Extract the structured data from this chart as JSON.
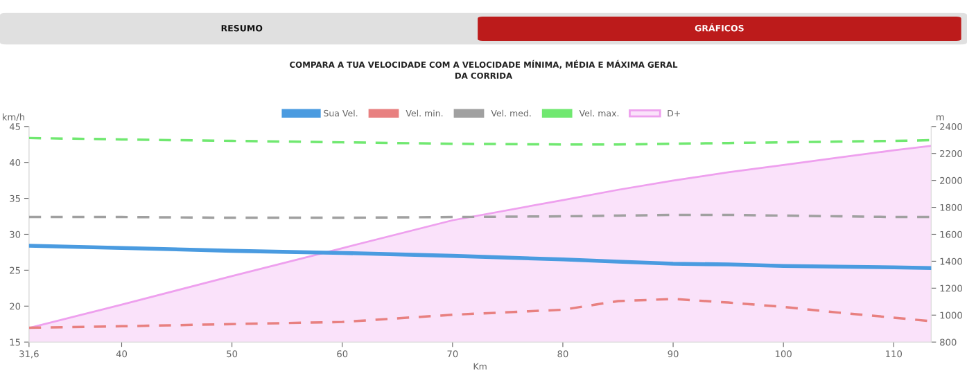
{
  "chart_data": {
    "type": "line",
    "title": "COMPARA A TUA VELOCIDADE COM A VELOCIDADE MÍNIMA, MÉDIA E MÁXIMA GERAL\nDA CORRIDA",
    "annotations": [
      "RESUMO",
      "GRÁFICOS"
    ],
    "xlabel": "Km",
    "ylabel": "km/h",
    "y2label": "m",
    "x": [
      31.6,
      40,
      50,
      60,
      70,
      80,
      85,
      90,
      95,
      100,
      105,
      110,
      113.4
    ],
    "xlim": [
      31.6,
      113.4
    ],
    "xticks": [
      {
        "value": 31.6,
        "label": "31,6"
      },
      40,
      50,
      60,
      70,
      80,
      90,
      100,
      110
    ],
    "ylim": [
      15,
      45
    ],
    "yticks": [
      15,
      20,
      25,
      30,
      35,
      40,
      45
    ],
    "y2lim": [
      800,
      2400
    ],
    "y2ticks": [
      800,
      1000,
      1200,
      1400,
      1600,
      1800,
      2000,
      2200,
      2400
    ],
    "grid": false,
    "legend": "top",
    "marker": "none",
    "series": [
      {
        "name": "Sua Vel.",
        "line_style": "solid",
        "color": "#4a9be0",
        "values": [
          28.4,
          28.1,
          27.7,
          27.4,
          27.0,
          26.5,
          26.2,
          25.9,
          25.8,
          25.6,
          25.5,
          25.4,
          25.3
        ]
      },
      {
        "name": "Vel. min.",
        "line_style": "dashed",
        "color": "#e88080",
        "values": [
          17.0,
          17.2,
          17.5,
          17.8,
          18.8,
          19.5,
          20.7,
          21.0,
          20.5,
          19.9,
          19.1,
          18.4,
          17.9
        ]
      },
      {
        "name": "Vel. med.",
        "line_style": "dashed",
        "color": "#a0a0a0",
        "values": [
          32.4,
          32.4,
          32.3,
          32.3,
          32.4,
          32.5,
          32.6,
          32.7,
          32.7,
          32.6,
          32.5,
          32.4,
          32.4
        ]
      },
      {
        "name": "Vel. max.",
        "line_style": "dashed",
        "color": "#70e870",
        "values": [
          43.4,
          43.2,
          43.0,
          42.8,
          42.6,
          42.5,
          42.5,
          42.6,
          42.7,
          42.8,
          42.9,
          43.0,
          43.1
        ]
      },
      {
        "name": "D+",
        "type": "area",
        "axis": "y2",
        "line_style": "solid",
        "color": "#eea0ee",
        "values": [
          905,
          1078,
          1290,
          1497,
          1704,
          1854,
          1930,
          1999,
          2060,
          2114,
          2170,
          2223,
          2257
        ]
      }
    ]
  }
}
